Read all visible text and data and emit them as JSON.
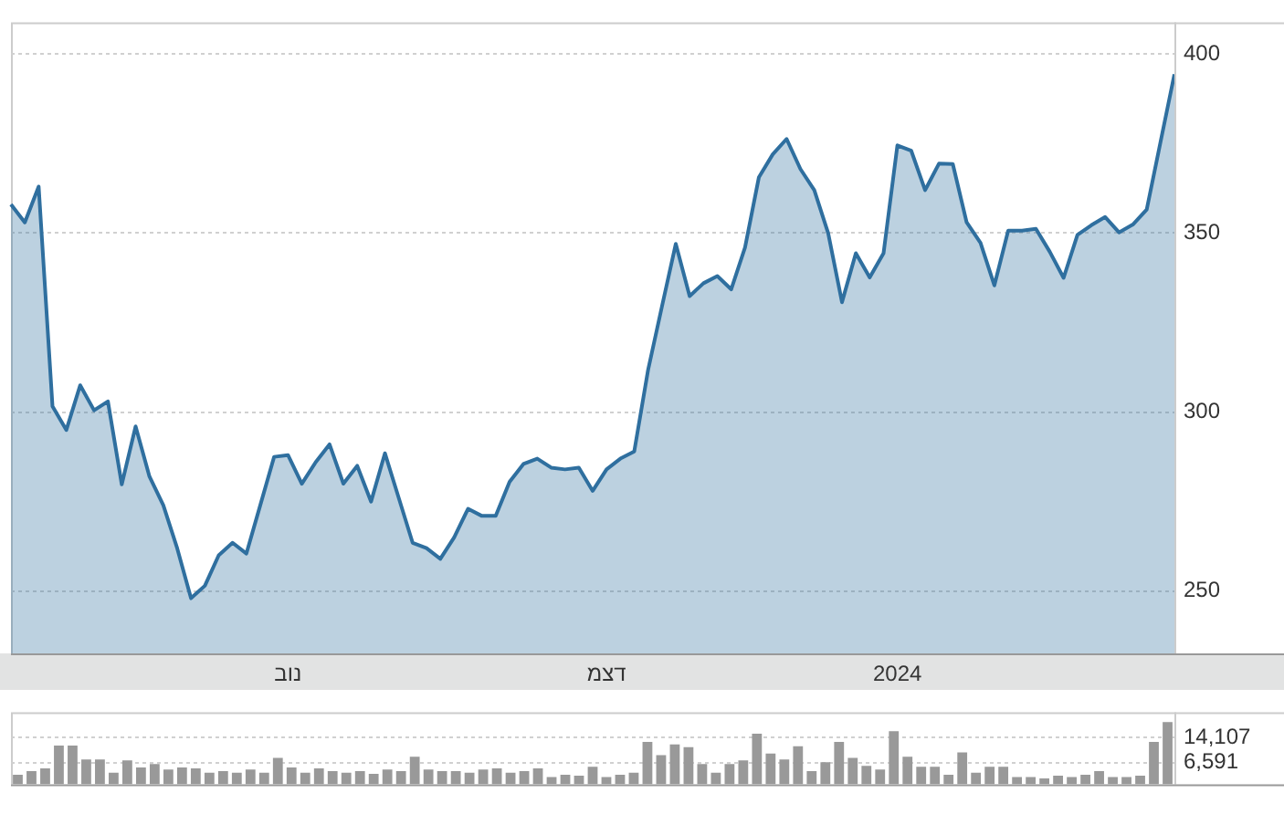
{
  "chart_data": [
    {
      "type": "area",
      "categories": [
        null,
        null,
        null,
        null,
        null,
        null,
        null,
        null,
        null,
        null,
        null,
        null,
        null,
        null,
        null,
        null,
        null,
        null,
        null,
        null,
        "נוב",
        null,
        null,
        null,
        null,
        null,
        null,
        null,
        null,
        null,
        null,
        null,
        null,
        null,
        null,
        null,
        null,
        null,
        null,
        null,
        null,
        null,
        null,
        "דצמ",
        null,
        null,
        null,
        null,
        null,
        null,
        null,
        null,
        null,
        null,
        null,
        null,
        null,
        null,
        null,
        null,
        null,
        null,
        null,
        null,
        "2024",
        null,
        null,
        null,
        null,
        null,
        null,
        null,
        null,
        null,
        null,
        null,
        null,
        null,
        null,
        null,
        null,
        null,
        null,
        null,
        null
      ],
      "series": [
        {
          "color": "#2f6f9f",
          "values": [
            358,
            353,
            363,
            301.6,
            295,
            307.5,
            300.5,
            303,
            279.8,
            296,
            282,
            274,
            262,
            248,
            251.5,
            260,
            263.5,
            260.5,
            274,
            287.5,
            288,
            280,
            286,
            291,
            280,
            285,
            275,
            288.5,
            276,
            263.5,
            262,
            259,
            265,
            273,
            271,
            271,
            280.5,
            285.5,
            287,
            284.5,
            284,
            284.5,
            278,
            284,
            287,
            289,
            311.8,
            329.5,
            347,
            332.4,
            336,
            338,
            334.3,
            346,
            365.6,
            372,
            376.3,
            367.9,
            362,
            350,
            330.7,
            344.4,
            337.6,
            344.4,
            374.5,
            373,
            362,
            369.4,
            369.3,
            353,
            347.3,
            335.4,
            350.7,
            350.7,
            351.2,
            344.8,
            337.5,
            349.5,
            352.2,
            354.5,
            350.2,
            352.4,
            356.6,
            375.5,
            394.4
          ]
        }
      ],
      "ylim": [
        232.6,
        408.9
      ],
      "yticks": [
        250,
        300,
        350,
        400
      ],
      "grid": "y",
      "marker": "none"
    },
    {
      "type": "bar",
      "categories": [
        null,
        null,
        null,
        null,
        null,
        null,
        null,
        null,
        null,
        null,
        null,
        null,
        null,
        null,
        null,
        null,
        null,
        null,
        null,
        null,
        null,
        null,
        null,
        null,
        null,
        null,
        null,
        null,
        null,
        null,
        null,
        null,
        null,
        null,
        null,
        null,
        null,
        null,
        null,
        null,
        null,
        null,
        null,
        null,
        null,
        null,
        null,
        null,
        null,
        null,
        null,
        null,
        null,
        null,
        null,
        null,
        null,
        null,
        null,
        null,
        null,
        null,
        null,
        null,
        null,
        null,
        null,
        null,
        null,
        null,
        null,
        null,
        null,
        null,
        null,
        null,
        null,
        null,
        null,
        null,
        null,
        null,
        null,
        null,
        null
      ],
      "color": "#999999",
      "values": [
        2900,
        4000,
        4800,
        11700,
        11700,
        7500,
        7500,
        3500,
        7200,
        5100,
        6100,
        4500,
        5100,
        4800,
        3500,
        4000,
        3500,
        4500,
        3500,
        8000,
        5100,
        3500,
        4800,
        4000,
        3500,
        4000,
        3200,
        4500,
        4000,
        8300,
        4500,
        4000,
        4000,
        3500,
        4500,
        4800,
        3500,
        4000,
        4800,
        2200,
        2900,
        2600,
        5300,
        2200,
        2900,
        3500,
        12800,
        8800,
        12000,
        11200,
        6100,
        3500,
        6100,
        7200,
        15200,
        9300,
        7500,
        11500,
        4000,
        6700,
        12800,
        8000,
        5600,
        4500,
        16000,
        8300,
        5300,
        5300,
        2900,
        9600,
        3500,
        5300,
        5300,
        2200,
        2200,
        1800,
        2600,
        2200,
        2900,
        4000,
        2200,
        2200,
        2600,
        12800,
        18700
      ],
      "ylim": [
        0,
        21700
      ],
      "yticks": [
        {
          "value": 6591,
          "label": "6,591"
        },
        {
          "value": 14107,
          "label": "14,107"
        }
      ],
      "grid": "y",
      "tick_labels": "y"
    }
  ]
}
